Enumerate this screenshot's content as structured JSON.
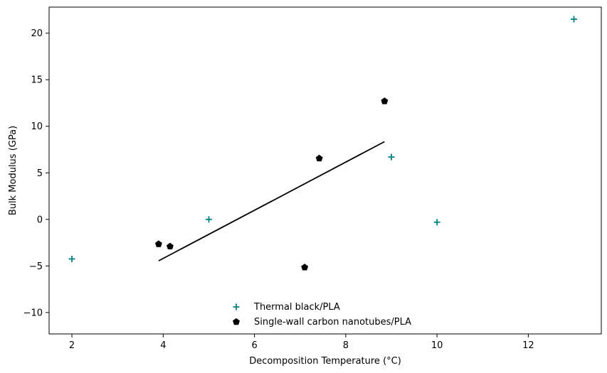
{
  "chart_data": {
    "type": "scatter",
    "title": "",
    "xlabel": "Decomposition Temperature (°C)",
    "ylabel": "Bulk Modulus (GPa)",
    "xlim": [
      1.5,
      13.6
    ],
    "ylim": [
      -12.3,
      22.8
    ],
    "xticks": [
      2,
      4,
      6,
      8,
      10,
      12
    ],
    "yticks": [
      -10,
      -5,
      0,
      5,
      10,
      15,
      20
    ],
    "grid": false,
    "legend_position": "lower-center",
    "series": [
      {
        "name": "Thermal black/PLA",
        "marker": "plus",
        "color": "#008080",
        "points": [
          {
            "x": 2.0,
            "y": -4.25
          },
          {
            "x": 5.0,
            "y": 0.0
          },
          {
            "x": 9.0,
            "y": 6.7
          },
          {
            "x": 10.0,
            "y": -0.3
          },
          {
            "x": 13.0,
            "y": 21.5
          }
        ]
      },
      {
        "name": "Single-wall carbon nanotubes/PLA",
        "marker": "pentagon",
        "color": "#000000",
        "points": [
          {
            "x": 3.9,
            "y": -2.65
          },
          {
            "x": 4.15,
            "y": -2.9
          },
          {
            "x": 7.1,
            "y": -5.15
          },
          {
            "x": 7.42,
            "y": 6.55
          },
          {
            "x": 8.85,
            "y": 12.7
          }
        ]
      }
    ],
    "fit_line": {
      "color": "#000000",
      "points": [
        {
          "x": 3.9,
          "y": -4.45
        },
        {
          "x": 8.85,
          "y": 8.35
        }
      ]
    }
  }
}
